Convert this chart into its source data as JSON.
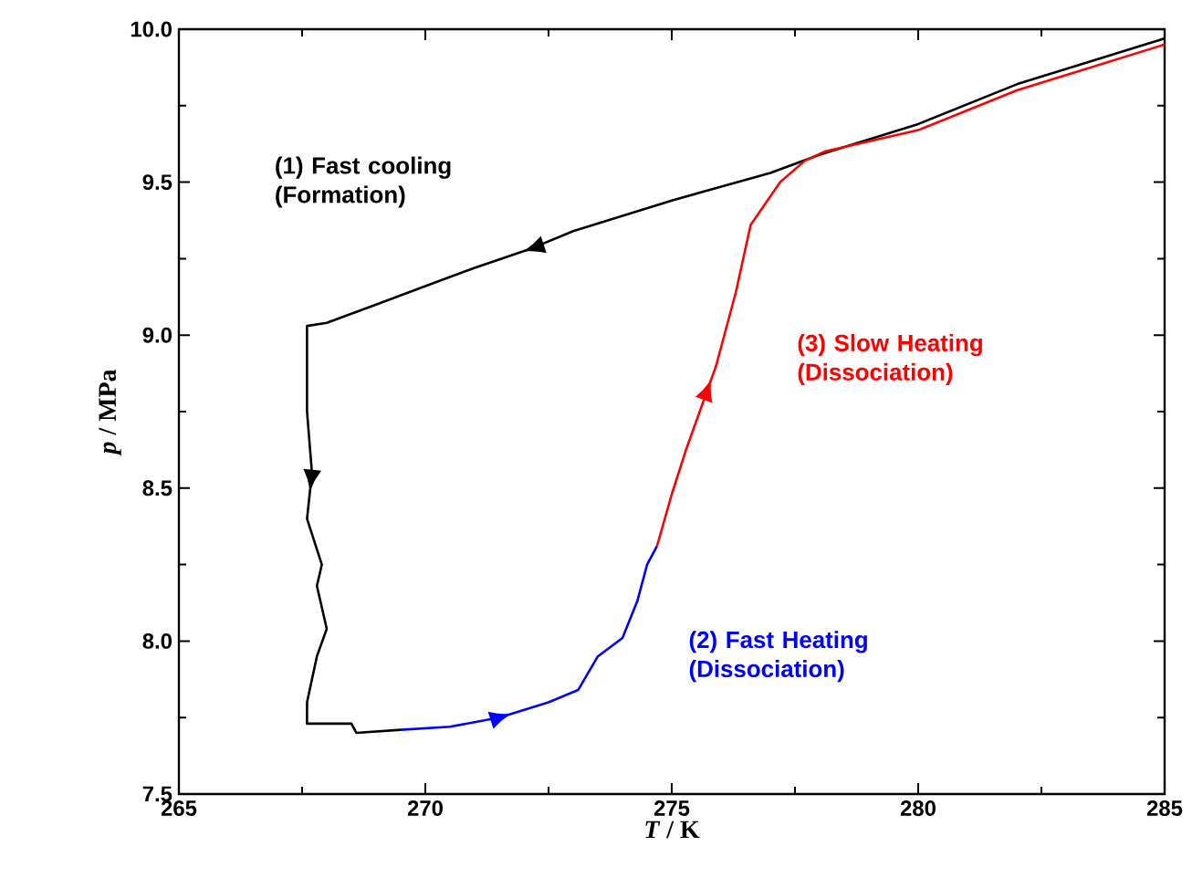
{
  "chart_data": {
    "type": "line",
    "xlabel": "*T* / K",
    "ylabel": "*p* / MPa",
    "xlim": [
      265,
      285
    ],
    "xticks": [
      265,
      270,
      275,
      280,
      285
    ],
    "ylim": [
      7.5,
      10.0
    ],
    "yticks": [
      7.5,
      {
        "value": 8,
        "label": "8.0"
      },
      8.5,
      {
        "value": 9,
        "label": "9.0"
      },
      9.5,
      {
        "value": 10,
        "label": "10.0"
      }
    ],
    "grid": false,
    "legend": false,
    "marker": "none",
    "line_style": "solid",
    "series": [
      {
        "name": "(1)  Fast cooling (Formation)",
        "color": "#000000",
        "x": [
          285,
          282,
          280,
          278,
          277,
          275,
          273,
          272.1,
          271,
          270,
          269,
          268,
          267.6,
          267.6,
          267.7,
          267.6,
          267.9,
          267.8,
          268.0,
          267.8,
          267.6,
          267.6,
          268.5,
          268.6,
          269.5
        ],
        "values": [
          9.97,
          9.82,
          9.69,
          9.59,
          9.53,
          9.44,
          9.34,
          9.28,
          9.22,
          9.16,
          9.1,
          9.04,
          9.03,
          8.75,
          8.55,
          8.4,
          8.25,
          8.18,
          8.04,
          7.95,
          7.8,
          7.73,
          7.73,
          7.7,
          7.71
        ]
      },
      {
        "name": "(2) Fast Heating (Dissociation)",
        "color": "#0000ff",
        "x": [
          269.5,
          270.5,
          271.5,
          272.5,
          273.1,
          273.5,
          274.0,
          274.3,
          274.5,
          274.7
        ],
        "values": [
          7.71,
          7.72,
          7.75,
          7.8,
          7.84,
          7.95,
          8.01,
          8.13,
          8.25,
          8.31
        ]
      },
      {
        "name": "(3) Slow Heating (Dissociation)",
        "color": "#ff0000",
        "x": [
          274.7,
          275.0,
          275.3,
          275.9,
          276.3,
          276.6,
          277.2,
          277.7,
          278.1,
          280,
          282,
          285
        ],
        "values": [
          8.31,
          8.48,
          8.63,
          8.9,
          9.14,
          9.36,
          9.5,
          9.57,
          9.6,
          9.67,
          9.8,
          9.95
        ]
      }
    ]
  }
}
